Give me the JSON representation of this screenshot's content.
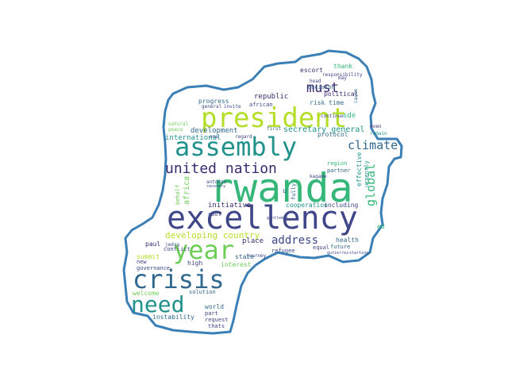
{
  "outline_color": "#3a7fb5",
  "palette": {
    "dark_purple": "#3b2b6f",
    "indigo": "#3f4788",
    "blue": "#31688e",
    "teal": "#21918c",
    "green": "#35b779",
    "light_green": "#6ece58",
    "yellow_green": "#b5de2b"
  },
  "words": [
    {
      "text": "rwanda",
      "color": "#35b779"
    },
    {
      "text": "excellency",
      "color": "#3f4788"
    },
    {
      "text": "president",
      "color": "#b5de2b"
    },
    {
      "text": "assembly",
      "color": "#21918c"
    },
    {
      "text": "year",
      "color": "#6ece58"
    },
    {
      "text": "crisis",
      "color": "#31688e"
    },
    {
      "text": "need",
      "color": "#21918c"
    },
    {
      "text": "united nation",
      "color": "#3b2b6f"
    },
    {
      "text": "must",
      "color": "#3b2b6f"
    },
    {
      "text": "climate",
      "color": "#31688e"
    },
    {
      "text": "address",
      "color": "#3f4788"
    },
    {
      "text": "global",
      "color": "#35b779"
    },
    {
      "text": "developing country",
      "color": "#b5de2b"
    },
    {
      "text": "secretary general",
      "color": "#21918c"
    },
    {
      "text": "development",
      "color": "#31688e"
    },
    {
      "text": "international",
      "color": "#21918c"
    },
    {
      "text": "republic",
      "color": "#3b2b6f"
    },
    {
      "text": "progress",
      "color": "#31688e"
    },
    {
      "text": "african",
      "color": "#3f4788"
    },
    {
      "text": "risk",
      "color": "#31688e"
    },
    {
      "text": "time",
      "color": "#31688e"
    },
    {
      "text": "political",
      "color": "#3b2b6f"
    },
    {
      "text": "decision",
      "color": "#31688e"
    },
    {
      "text": "escort",
      "color": "#3b2b6f"
    },
    {
      "text": "thank",
      "color": "#35b779"
    },
    {
      "text": "responsibility",
      "color": "#3f4788"
    },
    {
      "text": "protocol",
      "color": "#31688e"
    },
    {
      "text": "region",
      "color": "#35b779"
    },
    {
      "text": "partner",
      "color": "#31688e"
    },
    {
      "text": "effective",
      "color": "#21918c"
    },
    {
      "text": "urgently",
      "color": "#21918c"
    },
    {
      "text": "initiative",
      "color": "#3b2b6f"
    },
    {
      "text": "cooperation",
      "color": "#21918c"
    },
    {
      "text": "including",
      "color": "#3f4788"
    },
    {
      "text": "africa",
      "color": "#6ece58"
    },
    {
      "text": "behalf",
      "color": "#6ece58"
    },
    {
      "text": "place",
      "color": "#3b2b6f"
    },
    {
      "text": "health",
      "color": "#31688e"
    },
    {
      "text": "future",
      "color": "#31688e"
    },
    {
      "text": "equal",
      "color": "#3f4788"
    },
    {
      "text": "summit",
      "color": "#b5de2b"
    },
    {
      "text": "paul",
      "color": "#3b2b6f"
    },
    {
      "text": "new",
      "color": "#3f4788"
    },
    {
      "text": "conflict",
      "color": "#3f4788"
    },
    {
      "text": "governance",
      "color": "#3f4788"
    },
    {
      "text": "high",
      "color": "#3f4788"
    },
    {
      "text": "state",
      "color": "#31688e"
    },
    {
      "text": "interest",
      "color": "#6ece58"
    },
    {
      "text": "refugee",
      "color": "#3f4788"
    },
    {
      "text": "welcome",
      "color": "#6ece58"
    },
    {
      "text": "solution",
      "color": "#31688e"
    },
    {
      "text": "world",
      "color": "#31688e"
    },
    {
      "text": "part",
      "color": "#3f4788"
    },
    {
      "text": "instability",
      "color": "#31688e"
    },
    {
      "text": "request",
      "color": "#3f4788"
    },
    {
      "text": "thats",
      "color": "#3f4788"
    },
    {
      "text": "journey",
      "color": "#3f4788"
    },
    {
      "text": "continue",
      "color": "#3f4788"
    },
    {
      "text": "remain",
      "color": "#21918c"
    },
    {
      "text": "even",
      "color": "#3b2b6f"
    },
    {
      "text": "first",
      "color": "#31688e"
    },
    {
      "text": "regard",
      "color": "#3f4788"
    },
    {
      "text": "one",
      "color": "#3f4788"
    },
    {
      "text": "natural",
      "color": "#6ece58"
    },
    {
      "text": "peace",
      "color": "#6ece58"
    },
    {
      "text": "general",
      "color": "#3f4788"
    },
    {
      "text": "head",
      "color": "#3f4788"
    },
    {
      "text": "cause",
      "color": "#31688e"
    },
    {
      "text": "kagame",
      "color": "#3f4788"
    },
    {
      "text": "invite",
      "color": "#3f4788"
    },
    {
      "text": "cool",
      "color": "#3f4788"
    },
    {
      "text": "fully",
      "color": "#31688e"
    },
    {
      "text": "jedra",
      "color": "#3f4788"
    },
    {
      "text": "antonio",
      "color": "#3f4788"
    },
    {
      "text": "gutierrez",
      "color": "#3f4788"
    },
    {
      "text": "starting",
      "color": "#3f4788"
    },
    {
      "text": "gentleman",
      "color": "#3f4788"
    },
    {
      "text": "recovery",
      "color": "#3f4788"
    },
    {
      "text": "may",
      "color": "#3f4788"
    },
    {
      "text": "sde",
      "color": "#35b779"
    },
    {
      "text": "ed",
      "color": "#35b779"
    },
    {
      "text": "u",
      "color": "#31688e"
    }
  ]
}
